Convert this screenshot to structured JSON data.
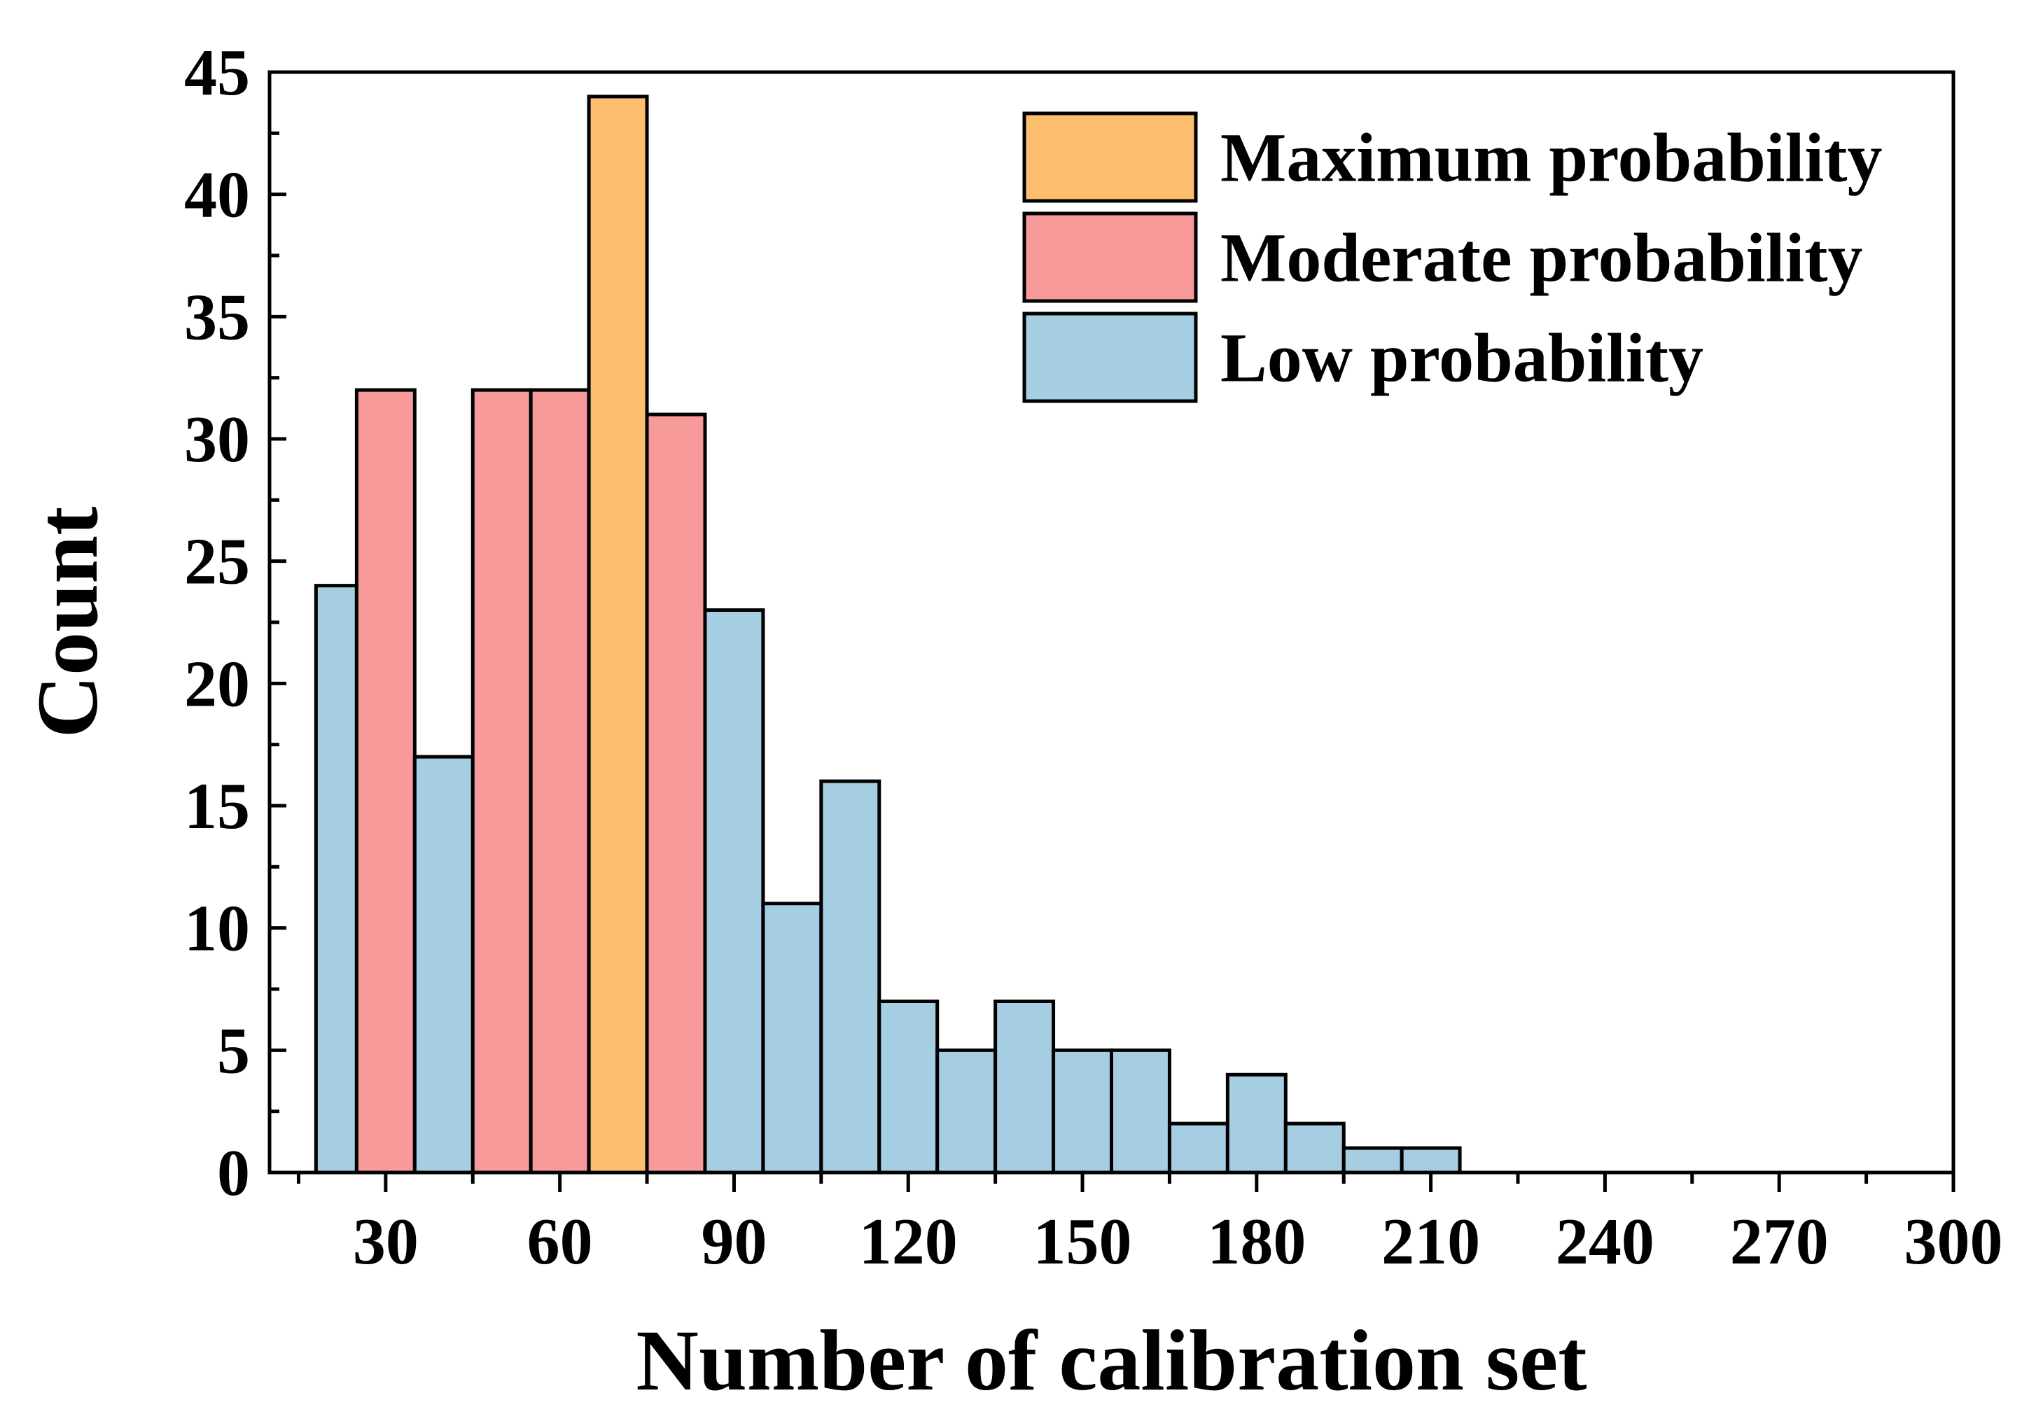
{
  "chart_data": {
    "type": "bar",
    "title": "",
    "xlabel": "Number of calibration set",
    "ylabel": "Count",
    "xlim": [
      10,
      300
    ],
    "ylim": [
      0,
      45
    ],
    "x_ticks": [
      30,
      60,
      90,
      120,
      150,
      180,
      210,
      240,
      270,
      300
    ],
    "y_ticks": [
      0,
      5,
      10,
      15,
      20,
      25,
      30,
      35,
      40,
      45
    ],
    "bin_width": 10,
    "grid": false,
    "legend_position": "top-right",
    "colors": {
      "Maximum probability": "#FDBF6F",
      "Moderate probability": "#F89A9A",
      "Low probability": "#A6CEE3"
    },
    "legend": [
      "Maximum probability",
      "Moderate probability",
      "Low probability"
    ],
    "bins": [
      {
        "start": 18,
        "end": 25,
        "value": 24,
        "category": "Low probability"
      },
      {
        "start": 25,
        "end": 35,
        "value": 32,
        "category": "Moderate probability"
      },
      {
        "start": 35,
        "end": 45,
        "value": 17,
        "category": "Low probability"
      },
      {
        "start": 45,
        "end": 55,
        "value": 32,
        "category": "Moderate probability"
      },
      {
        "start": 55,
        "end": 65,
        "value": 32,
        "category": "Moderate probability"
      },
      {
        "start": 65,
        "end": 75,
        "value": 44,
        "category": "Maximum probability"
      },
      {
        "start": 75,
        "end": 85,
        "value": 31,
        "category": "Moderate probability"
      },
      {
        "start": 85,
        "end": 95,
        "value": 23,
        "category": "Low probability"
      },
      {
        "start": 95,
        "end": 105,
        "value": 11,
        "category": "Low probability"
      },
      {
        "start": 105,
        "end": 115,
        "value": 16,
        "category": "Low probability"
      },
      {
        "start": 115,
        "end": 125,
        "value": 7,
        "category": "Low probability"
      },
      {
        "start": 125,
        "end": 135,
        "value": 5,
        "category": "Low probability"
      },
      {
        "start": 135,
        "end": 145,
        "value": 7,
        "category": "Low probability"
      },
      {
        "start": 145,
        "end": 155,
        "value": 5,
        "category": "Low probability"
      },
      {
        "start": 155,
        "end": 165,
        "value": 5,
        "category": "Low probability"
      },
      {
        "start": 165,
        "end": 175,
        "value": 2,
        "category": "Low probability"
      },
      {
        "start": 175,
        "end": 185,
        "value": 4,
        "category": "Low probability"
      },
      {
        "start": 185,
        "end": 195,
        "value": 2,
        "category": "Low probability"
      },
      {
        "start": 195,
        "end": 205,
        "value": 1,
        "category": "Low probability"
      },
      {
        "start": 205,
        "end": 215,
        "value": 1,
        "category": "Low probability"
      }
    ]
  }
}
